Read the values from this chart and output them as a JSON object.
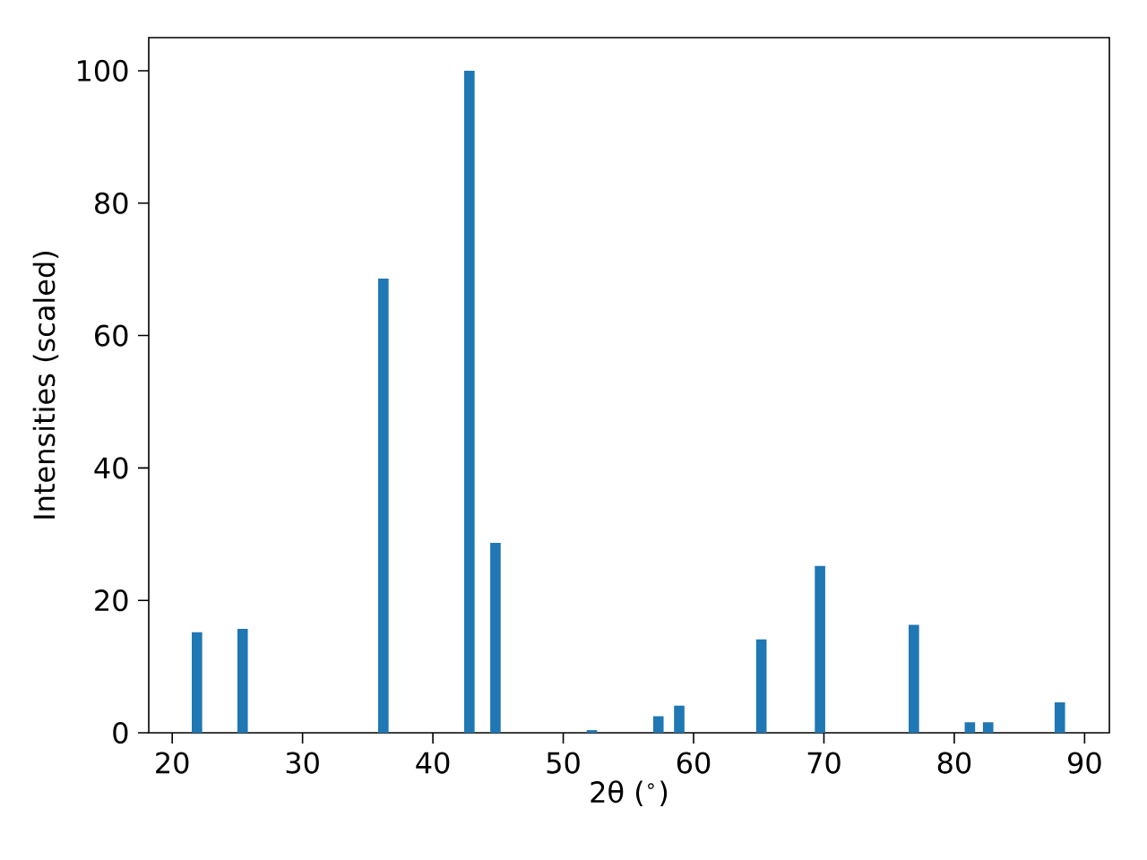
{
  "chart_data": {
    "type": "bar",
    "xlabel": "2θ ($^{∘}$)",
    "ylabel": "Intensities (scaled)",
    "x": [
      21.9,
      25.4,
      36.2,
      42.8,
      44.8,
      52.2,
      57.3,
      58.9,
      65.2,
      69.7,
      76.9,
      81.2,
      82.6,
      88.1
    ],
    "values": [
      15.2,
      15.7,
      68.6,
      100,
      28.7,
      0.4,
      2.5,
      4.1,
      14.1,
      25.2,
      16.3,
      1.6,
      1.6,
      4.6
    ],
    "color": "#1f77b4",
    "xlim": [
      18.2,
      91.9
    ],
    "ylim": [
      0,
      105
    ],
    "xticks": [
      20,
      30,
      40,
      50,
      60,
      70,
      80,
      90
    ],
    "yticks": [
      0,
      20,
      40,
      60,
      80,
      100
    ]
  }
}
